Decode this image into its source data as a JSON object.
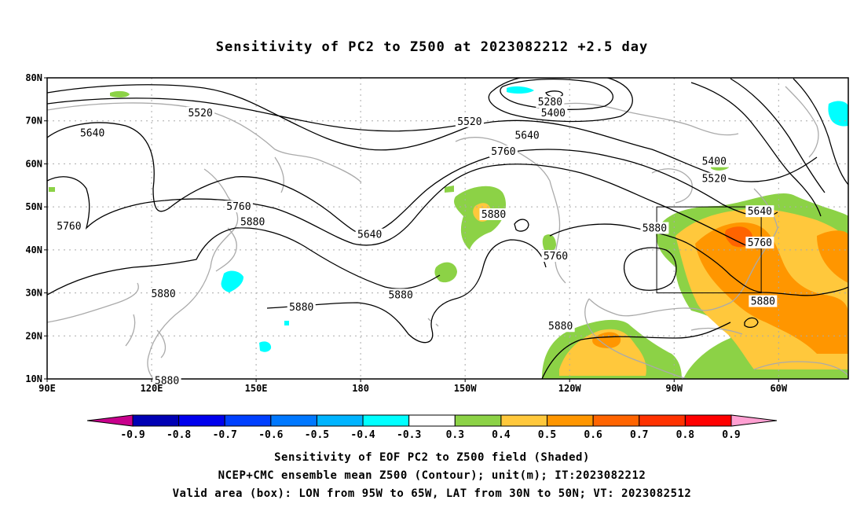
{
  "title": "Sensitivity of PC2 to Z500 at 2023082212 +2.5 day",
  "captions": {
    "line1": "Sensitivity of EOF PC2 to Z500 field (Shaded)",
    "line2": "NCEP+CMC ensemble mean Z500 (Contour); unit(m); IT:2023082212",
    "line3": "Valid area (box): LON from 95W to 65W, LAT from 30N to 50N; VT: 2023082512"
  },
  "map": {
    "lat_ticks": [
      "80N",
      "70N",
      "60N",
      "50N",
      "40N",
      "30N",
      "20N",
      "10N"
    ],
    "lon_ticks": [
      "90E",
      "120E",
      "150E",
      "180",
      "150W",
      "120W",
      "90W",
      "60W"
    ],
    "contour_labels": [
      {
        "text": "5520",
        "lon": 134,
        "lat": 71.8
      },
      {
        "text": "5640",
        "lon": 103,
        "lat": 67.1
      },
      {
        "text": "5760",
        "lon": 96.3,
        "lat": 45.5
      },
      {
        "text": "5760",
        "lon": 145,
        "lat": 50.0
      },
      {
        "text": "5880",
        "lon": 149,
        "lat": 46.5
      },
      {
        "text": "5880",
        "lon": 123.4,
        "lat": 29.7
      },
      {
        "text": "5880",
        "lon": 163,
        "lat": 26.6
      },
      {
        "text": "5880",
        "lon": 124.4,
        "lat": 9.5
      },
      {
        "text": "5640",
        "lon": 182.6,
        "lat": 43.5
      },
      {
        "text": "5880",
        "lon": 191.5,
        "lat": 29.5
      },
      {
        "text": "5880",
        "lon": 218.2,
        "lat": 48.2
      },
      {
        "text": "5760",
        "lon": 221,
        "lat": 62.8
      },
      {
        "text": "5640",
        "lon": 227.8,
        "lat": 66.6
      },
      {
        "text": "5520",
        "lon": 211.3,
        "lat": 69.8
      },
      {
        "text": "5280",
        "lon": 234.4,
        "lat": 74.3
      },
      {
        "text": "5400",
        "lon": 235.3,
        "lat": 71.8
      },
      {
        "text": "5760",
        "lon": 236,
        "lat": 38.5
      },
      {
        "text": "5880",
        "lon": 237.4,
        "lat": 22.2
      },
      {
        "text": "5880",
        "lon": 264.4,
        "lat": 45.0
      },
      {
        "text": "5400",
        "lon": 281.5,
        "lat": 60.5
      },
      {
        "text": "5520",
        "lon": 281.5,
        "lat": 56.5
      },
      {
        "text": "5640",
        "lon": 294.6,
        "lat": 48.9
      },
      {
        "text": "5760",
        "lon": 294.6,
        "lat": 41.6
      },
      {
        "text": "5880",
        "lon": 295.5,
        "lat": 28.0
      }
    ]
  },
  "colorbar": {
    "labels": [
      "-0.9",
      "-0.8",
      "-0.7",
      "-0.6",
      "-0.5",
      "-0.4",
      "-0.3",
      "0.3",
      "0.4",
      "0.5",
      "0.6",
      "0.7",
      "0.8",
      "0.9"
    ],
    "colors": [
      "#0000b4",
      "#0000ee",
      "#0040ff",
      "#0078ff",
      "#00b4ff",
      "#00ffff",
      "#ffffff",
      "#8cd246",
      "#ffc83c",
      "#ff9600",
      "#ff6400",
      "#ff3200",
      "#ff0000"
    ],
    "left_end_color": "#c8008c",
    "right_end_color": "#ffa0d2"
  },
  "valid_box": {
    "lon_min": -95,
    "lon_max": -65,
    "lat_min": 30,
    "lat_max": 50
  }
}
